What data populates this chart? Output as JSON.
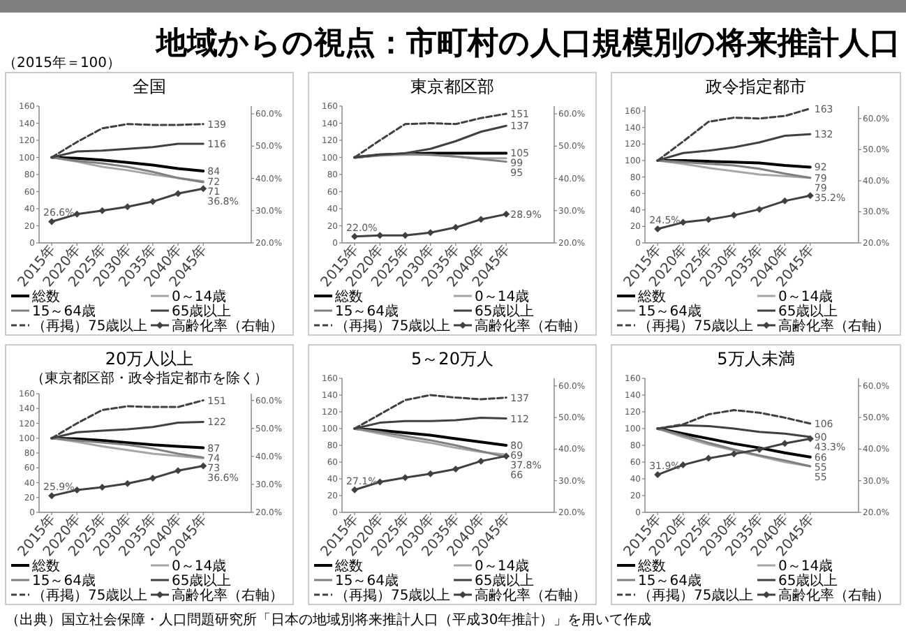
{
  "chart_data": [
    {
      "type": "line",
      "title": "全国",
      "categories": [
        "2015年",
        "2020年",
        "2025年",
        "2030年",
        "2035年",
        "2040年",
        "2045年"
      ],
      "ylim": [
        0,
        160
      ],
      "yticks": [
        0,
        20,
        40,
        60,
        80,
        100,
        120,
        140,
        160
      ],
      "y2lim": [
        20,
        62.4
      ],
      "y2ticks": [
        {
          "value": 20,
          "label": "20.0%"
        },
        {
          "value": 30,
          "label": "30.0%"
        },
        {
          "value": 40,
          "label": "40.0%"
        },
        {
          "value": 50,
          "label": "50.0%"
        },
        {
          "value": 60,
          "label": "60.0%"
        }
      ],
      "legend": "bottom",
      "annotations": [
        "地域からの視点：市町村の人口規模別の将来推計人口",
        "（2015年＝100）",
        "（出典）国立社会保障・人口問題研究所「日本の地域別将来推計人口（平成30年推計）」を用いて作成"
      ],
      "series": [
        {
          "name": "総数",
          "color": "#000000",
          "line_style": "solid",
          "values": [
            100,
            99,
            97,
            94,
            91,
            87,
            84
          ],
          "value_labels": [
            null,
            null,
            null,
            null,
            null,
            null,
            "84"
          ]
        },
        {
          "name": "0～14歳",
          "color": "#a6a6a6",
          "line_style": "solid",
          "values": [
            100,
            95,
            89,
            85,
            80,
            76,
            72
          ],
          "value_labels": [
            null,
            null,
            null,
            null,
            null,
            null,
            "72"
          ]
        },
        {
          "name": "15～64歳",
          "color": "#7f7f7f",
          "line_style": "solid",
          "values": [
            100,
            96,
            93,
            89,
            83,
            76,
            71
          ],
          "value_labels": [
            null,
            null,
            null,
            null,
            null,
            null,
            "71"
          ]
        },
        {
          "name": "65歳以上",
          "color": "#404040",
          "line_style": "solid",
          "values": [
            100,
            107,
            108,
            110,
            112,
            116,
            116
          ],
          "value_labels": [
            null,
            null,
            null,
            null,
            null,
            null,
            "116"
          ]
        },
        {
          "name": "（再掲）75歳以上",
          "color": "#404040",
          "line_style": "dashed",
          "values": [
            100,
            118,
            134,
            139,
            138,
            138,
            139
          ],
          "value_labels": [
            null,
            null,
            null,
            null,
            null,
            null,
            "139"
          ]
        },
        {
          "name": "高齢化率（右軸）",
          "color": "#404040",
          "line_style": "solid",
          "marker": "diamond",
          "axis": "y2",
          "values": [
            26.6,
            28.9,
            30.0,
            31.2,
            32.8,
            35.3,
            36.8
          ],
          "value_labels": [
            "26.6%",
            null,
            null,
            null,
            null,
            null,
            "36.8%"
          ]
        }
      ]
    },
    {
      "type": "line",
      "title": "東京都区部",
      "categories": [
        "2015年",
        "2020年",
        "2025年",
        "2030年",
        "2035年",
        "2040年",
        "2045年"
      ],
      "ylim": [
        0,
        160
      ],
      "yticks": [
        0,
        20,
        40,
        60,
        80,
        100,
        120,
        140,
        160
      ],
      "y2lim": [
        20,
        62.4
      ],
      "y2ticks": [
        {
          "value": 20,
          "label": "20.0%"
        },
        {
          "value": 30,
          "label": "30.0%"
        },
        {
          "value": 40,
          "label": "40.0%"
        },
        {
          "value": 50,
          "label": "50.0%"
        },
        {
          "value": 60,
          "label": "60.0%"
        }
      ],
      "legend": "bottom",
      "series": [
        {
          "name": "総数",
          "color": "#000000",
          "line_style": "solid",
          "values": [
            100,
            103,
            104,
            105,
            105,
            105,
            105
          ],
          "value_labels": [
            null,
            null,
            null,
            null,
            null,
            null,
            "105"
          ]
        },
        {
          "name": "0～14歳",
          "color": "#a6a6a6",
          "line_style": "solid",
          "values": [
            100,
            102,
            103,
            103,
            101,
            99,
            99
          ],
          "value_labels": [
            null,
            null,
            null,
            null,
            null,
            null,
            "99"
          ]
        },
        {
          "name": "15～64歳",
          "color": "#7f7f7f",
          "line_style": "solid",
          "values": [
            100,
            103,
            104,
            103,
            101,
            98,
            95
          ],
          "value_labels": [
            null,
            null,
            null,
            null,
            null,
            null,
            "95"
          ]
        },
        {
          "name": "65歳以上",
          "color": "#404040",
          "line_style": "solid",
          "values": [
            100,
            103,
            105,
            110,
            119,
            130,
            137
          ],
          "value_labels": [
            null,
            null,
            null,
            null,
            null,
            null,
            "137"
          ]
        },
        {
          "name": "（再掲）75歳以上",
          "color": "#404040",
          "line_style": "dashed",
          "values": [
            100,
            120,
            139,
            140,
            139,
            146,
            151
          ],
          "value_labels": [
            null,
            null,
            null,
            null,
            null,
            null,
            "151"
          ]
        },
        {
          "name": "高齢化率（右軸）",
          "color": "#404040",
          "line_style": "solid",
          "marker": "diamond",
          "axis": "y2",
          "values": [
            22.0,
            22.3,
            22.3,
            23.2,
            24.8,
            27.3,
            28.9
          ],
          "value_labels": [
            "22.0%",
            null,
            null,
            null,
            null,
            null,
            "28.9%"
          ]
        }
      ]
    },
    {
      "type": "line",
      "title": "政令指定都市",
      "categories": [
        "2015年",
        "2020年",
        "2025年",
        "2030年",
        "2035年",
        "2040年",
        "2045年"
      ],
      "ylim": [
        0,
        166
      ],
      "yticks": [
        0,
        20,
        40,
        60,
        80,
        100,
        120,
        140,
        160
      ],
      "y2lim": [
        20,
        64
      ],
      "y2ticks": [
        {
          "value": 20,
          "label": "20.0%"
        },
        {
          "value": 30,
          "label": "30.0%"
        },
        {
          "value": 40,
          "label": "40.0%"
        },
        {
          "value": 50,
          "label": "50.0%"
        },
        {
          "value": 60,
          "label": "60.0%"
        }
      ],
      "legend": "bottom",
      "series": [
        {
          "name": "総数",
          "color": "#000000",
          "line_style": "solid",
          "values": [
            100,
            100,
            99,
            98,
            97,
            94,
            92
          ],
          "value_labels": [
            null,
            null,
            null,
            null,
            null,
            null,
            "92"
          ]
        },
        {
          "name": "0～14歳",
          "color": "#a6a6a6",
          "line_style": "solid",
          "values": [
            100,
            96,
            91,
            87,
            83,
            81,
            79
          ],
          "value_labels": [
            null,
            null,
            null,
            null,
            null,
            null,
            "79"
          ]
        },
        {
          "name": "15～64歳",
          "color": "#7f7f7f",
          "line_style": "solid",
          "values": [
            100,
            98,
            96,
            94,
            90,
            84,
            79
          ],
          "value_labels": [
            null,
            null,
            null,
            null,
            null,
            null,
            "79"
          ]
        },
        {
          "name": "65歳以上",
          "color": "#404040",
          "line_style": "solid",
          "values": [
            100,
            109,
            112,
            116,
            122,
            130,
            132
          ],
          "value_labels": [
            null,
            null,
            null,
            null,
            null,
            null,
            "132"
          ]
        },
        {
          "name": "（再掲）75歳以上",
          "color": "#404040",
          "line_style": "dashed",
          "values": [
            100,
            123,
            147,
            152,
            151,
            154,
            163
          ],
          "value_labels": [
            null,
            null,
            null,
            null,
            null,
            null,
            "163"
          ]
        },
        {
          "name": "高齢化率（右軸）",
          "color": "#404040",
          "line_style": "solid",
          "marker": "diamond",
          "axis": "y2",
          "values": [
            24.5,
            26.6,
            27.5,
            28.9,
            30.8,
            33.5,
            35.2
          ],
          "value_labels": [
            "24.5%",
            null,
            null,
            null,
            null,
            null,
            "35.2%"
          ]
        }
      ]
    },
    {
      "type": "line",
      "title": "20万人以上",
      "subtitle": "（東京都区部・政令指定都市を除く）",
      "categories": [
        "2015年",
        "2020年",
        "2025年",
        "2030年",
        "2035年",
        "2040年",
        "2045年"
      ],
      "ylim": [
        0,
        160
      ],
      "yticks": [
        0,
        20,
        40,
        60,
        80,
        100,
        120,
        140,
        160
      ],
      "y2lim": [
        20,
        62.4
      ],
      "y2ticks": [
        {
          "value": 20,
          "label": "20.0%"
        },
        {
          "value": 30,
          "label": "30.0%"
        },
        {
          "value": 40,
          "label": "40.0%"
        },
        {
          "value": 50,
          "label": "50.0%"
        },
        {
          "value": 60,
          "label": "60.0%"
        }
      ],
      "legend": "bottom",
      "series": [
        {
          "name": "総数",
          "color": "#000000",
          "line_style": "solid",
          "values": [
            100,
            99,
            97,
            94,
            91,
            89,
            87
          ],
          "value_labels": [
            null,
            null,
            null,
            null,
            null,
            null,
            "87"
          ]
        },
        {
          "name": "0～14歳",
          "color": "#a6a6a6",
          "line_style": "solid",
          "values": [
            100,
            95,
            89,
            84,
            79,
            76,
            73
          ],
          "value_labels": [
            null,
            null,
            null,
            null,
            null,
            null,
            "73"
          ]
        },
        {
          "name": "15～64歳",
          "color": "#7f7f7f",
          "line_style": "solid",
          "values": [
            100,
            97,
            94,
            91,
            86,
            79,
            74
          ],
          "value_labels": [
            null,
            null,
            null,
            null,
            null,
            null,
            "74"
          ]
        },
        {
          "name": "65歳以上",
          "color": "#404040",
          "line_style": "solid",
          "values": [
            100,
            108,
            110,
            112,
            115,
            121,
            122
          ],
          "value_labels": [
            null,
            null,
            null,
            null,
            null,
            null,
            "122"
          ]
        },
        {
          "name": "（再掲）75歳以上",
          "color": "#404040",
          "line_style": "dashed",
          "values": [
            100,
            120,
            138,
            143,
            142,
            142,
            151
          ],
          "value_labels": [
            null,
            null,
            null,
            null,
            null,
            null,
            "151"
          ]
        },
        {
          "name": "高齢化率（右軸）",
          "color": "#404040",
          "line_style": "solid",
          "marker": "diamond",
          "axis": "y2",
          "values": [
            25.9,
            28.0,
            29.0,
            30.3,
            32.2,
            34.9,
            36.6
          ],
          "value_labels": [
            "25.9%",
            null,
            null,
            null,
            null,
            null,
            "36.6%"
          ]
        }
      ]
    },
    {
      "type": "line",
      "title": "5～20万人",
      "categories": [
        "2015年",
        "2020年",
        "2025年",
        "2030年",
        "2035年",
        "2040年",
        "2045年"
      ],
      "ylim": [
        0,
        160
      ],
      "yticks": [
        0,
        20,
        40,
        60,
        80,
        100,
        120,
        140,
        160
      ],
      "y2lim": [
        20,
        62.4
      ],
      "y2ticks": [
        {
          "value": 20,
          "label": "20.0%"
        },
        {
          "value": 30,
          "label": "30.0%"
        },
        {
          "value": 40,
          "label": "40.0%"
        },
        {
          "value": 50,
          "label": "50.0%"
        },
        {
          "value": 60,
          "label": "60.0%"
        }
      ],
      "legend": "bottom",
      "series": [
        {
          "name": "総数",
          "color": "#000000",
          "line_style": "solid",
          "values": [
            100,
            98,
            95,
            92,
            88,
            84,
            80
          ],
          "value_labels": [
            null,
            null,
            null,
            null,
            null,
            null,
            "80"
          ]
        },
        {
          "name": "0～14歳",
          "color": "#a6a6a6",
          "line_style": "solid",
          "values": [
            100,
            94,
            88,
            83,
            77,
            72,
            69
          ],
          "value_labels": [
            null,
            null,
            null,
            null,
            null,
            null,
            "69"
          ]
        },
        {
          "name": "15～64歳",
          "color": "#7f7f7f",
          "line_style": "solid",
          "values": [
            100,
            96,
            91,
            86,
            80,
            73,
            66
          ],
          "value_labels": [
            null,
            null,
            null,
            null,
            null,
            null,
            "66"
          ]
        },
        {
          "name": "65歳以上",
          "color": "#404040",
          "line_style": "solid",
          "values": [
            100,
            107,
            109,
            109,
            110,
            113,
            112
          ],
          "value_labels": [
            null,
            null,
            null,
            null,
            null,
            null,
            "112"
          ]
        },
        {
          "name": "（再掲）75歳以上",
          "color": "#404040",
          "line_style": "dashed",
          "values": [
            100,
            117,
            134,
            140,
            137,
            135,
            137
          ],
          "value_labels": [
            null,
            null,
            null,
            null,
            null,
            null,
            "137"
          ]
        },
        {
          "name": "高齢化率（右軸）",
          "color": "#404040",
          "line_style": "solid",
          "marker": "diamond",
          "axis": "y2",
          "values": [
            27.1,
            29.6,
            31.0,
            32.2,
            33.7,
            36.2,
            37.8
          ],
          "value_labels": [
            "27.1%",
            null,
            null,
            null,
            null,
            null,
            "37.8%"
          ]
        }
      ]
    },
    {
      "type": "line",
      "title": "5万人未満",
      "categories": [
        "2015年",
        "2020年",
        "2025年",
        "2030年",
        "2035年",
        "2040年",
        "2045年"
      ],
      "ylim": [
        0,
        160
      ],
      "yticks": [
        0,
        20,
        40,
        60,
        80,
        100,
        120,
        140,
        160
      ],
      "y2lim": [
        20,
        62.4
      ],
      "y2ticks": [
        {
          "value": 20,
          "label": "20.0%"
        },
        {
          "value": 30,
          "label": "30.0%"
        },
        {
          "value": 40,
          "label": "40.0%"
        },
        {
          "value": 50,
          "label": "50.0%"
        },
        {
          "value": 60,
          "label": "60.0%"
        }
      ],
      "legend": "bottom",
      "series": [
        {
          "name": "総数",
          "color": "#000000",
          "line_style": "solid",
          "values": [
            100,
            94,
            88,
            82,
            77,
            71,
            66
          ],
          "value_labels": [
            null,
            null,
            null,
            null,
            null,
            null,
            "66"
          ]
        },
        {
          "name": "0～14歳",
          "color": "#a6a6a6",
          "line_style": "solid",
          "values": [
            100,
            90,
            81,
            74,
            67,
            60,
            55
          ],
          "value_labels": [
            null,
            null,
            null,
            null,
            null,
            null,
            "55"
          ]
        },
        {
          "name": "15～64歳",
          "color": "#7f7f7f",
          "line_style": "solid",
          "values": [
            100,
            92,
            83,
            75,
            68,
            62,
            55
          ],
          "value_labels": [
            null,
            null,
            null,
            null,
            null,
            null,
            "55"
          ]
        },
        {
          "name": "65歳以上",
          "color": "#404040",
          "line_style": "solid",
          "values": [
            100,
            104,
            103,
            100,
            96,
            94,
            90
          ],
          "value_labels": [
            null,
            null,
            null,
            null,
            null,
            null,
            "90"
          ]
        },
        {
          "name": "（再掲）75歳以上",
          "color": "#404040",
          "line_style": "dashed",
          "values": [
            100,
            105,
            117,
            122,
            119,
            113,
            106
          ],
          "value_labels": [
            null,
            null,
            null,
            null,
            null,
            null,
            "106"
          ]
        },
        {
          "name": "高齢化率（右軸）",
          "color": "#404040",
          "line_style": "solid",
          "marker": "diamond",
          "axis": "y2",
          "values": [
            31.9,
            35.0,
            37.1,
            38.5,
            39.9,
            41.8,
            43.3
          ],
          "value_labels": [
            "31.9%",
            null,
            null,
            null,
            null,
            null,
            "43.3%"
          ]
        }
      ]
    }
  ]
}
